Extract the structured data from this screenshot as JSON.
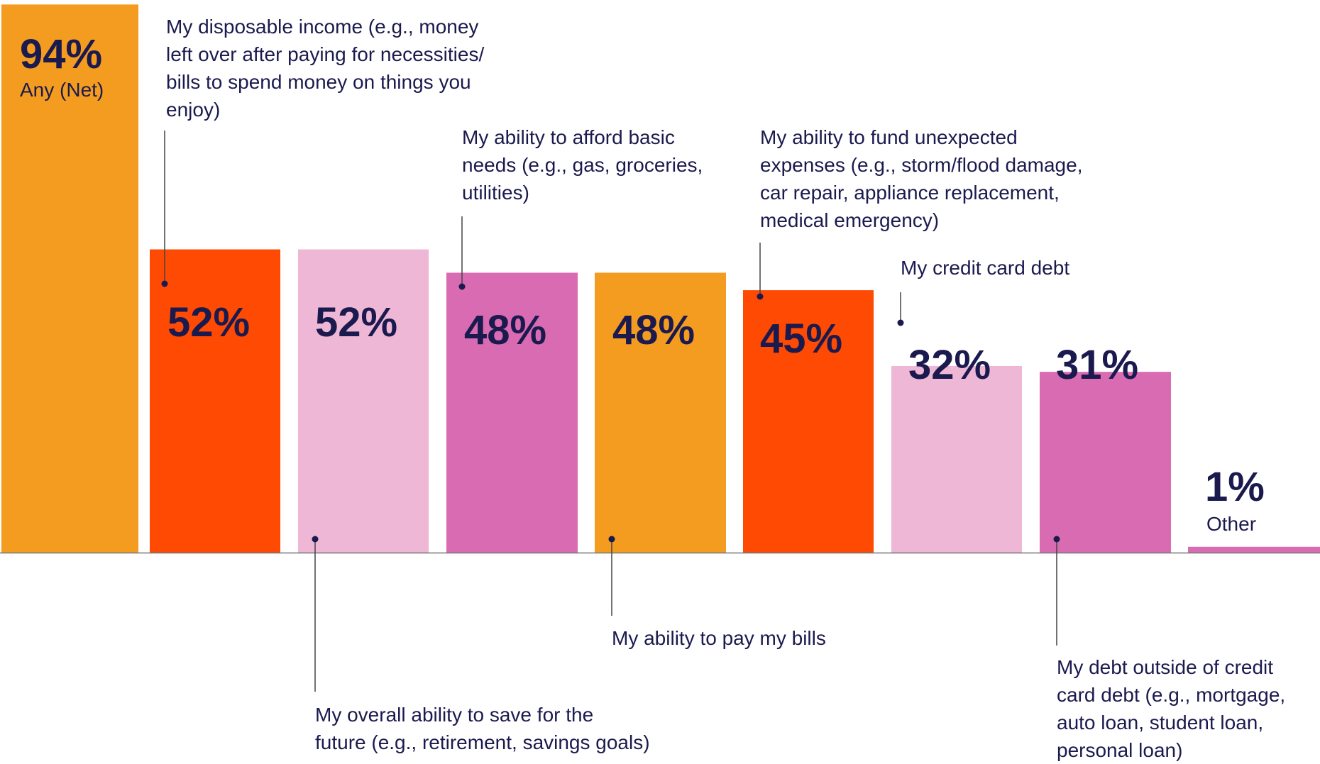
{
  "chart_data": {
    "type": "bar",
    "ylim": [
      0,
      100
    ],
    "grid": false,
    "legend": "none",
    "categories": [
      "Any (Net)",
      "My disposable income (e.g., money left over after paying for necessities/ bills to spend money on things you enjoy)",
      "My overall ability to save for the future (e.g., retirement, savings goals)",
      "My ability to afford basic needs (e.g., gas, groceries, utilities)",
      "My ability to pay my bills",
      "My ability to fund unexpected expenses (e.g., storm/flood damage, car repair, appliance replacement, medical emergency)",
      "My credit card debt",
      "My debt outside of credit card debt (e.g., mortgage, auto loan, student loan, personal loan)",
      "Other"
    ],
    "values": [
      94,
      52,
      52,
      48,
      48,
      45,
      32,
      31,
      1
    ],
    "value_labels": [
      "94%",
      "52%",
      "52%",
      "48%",
      "48%",
      "45%",
      "32%",
      "31%",
      "1%"
    ],
    "label_lines": [
      [
        "Any (Net)"
      ],
      [
        "My disposable income (e.g., money",
        "left over after paying for necessities/",
        "bills to spend money on things you",
        "enjoy)"
      ],
      [
        "My overall ability to save for the",
        "future (e.g., retirement, savings goals)"
      ],
      [
        "My ability to afford basic",
        "needs (e.g., gas, groceries,",
        "utilities)"
      ],
      [
        "My ability to pay my bills"
      ],
      [
        "My ability to fund unexpected",
        "expenses (e.g., storm/flood damage,",
        "car repair, appliance replacement,",
        "medical emergency)"
      ],
      [
        "My credit card debt"
      ],
      [
        "My debt outside of credit",
        "card debt (e.g., mortgage,",
        "auto loan, student loan,",
        "personal loan)"
      ],
      [
        "Other"
      ]
    ],
    "colors": [
      "#f39c1f",
      "#fe4a03",
      "#eeb7d5",
      "#d96bb2",
      "#f39c1f",
      "#fe4a03",
      "#eeb7d5",
      "#d96bb2",
      "#d96bb2"
    ],
    "text_color": "#1b1a4e",
    "axis_color": "#777777"
  }
}
